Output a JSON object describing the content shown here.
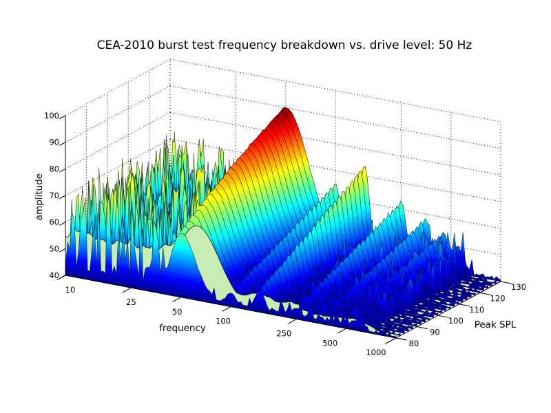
{
  "title": "CEA-2010 burst test frequency breakdown vs. drive level: 50 Hz",
  "chart_data": {
    "type": "waterfall",
    "title": "CEA-2010 burst test frequency breakdown vs. drive level: 50 Hz",
    "xlabel": "frequency",
    "ylabel": "Peak SPL",
    "zlabel": "amplitude",
    "x_scale": "log",
    "x_range": [
      10,
      1000
    ],
    "x_ticks": [
      10,
      25,
      50,
      100,
      250,
      500,
      1000
    ],
    "y_range": [
      80,
      130
    ],
    "y_ticks": [
      80,
      90,
      100,
      110,
      120,
      130
    ],
    "z_range": [
      40,
      100
    ],
    "z_ticks": [
      40,
      50,
      60,
      70,
      80,
      90,
      100
    ],
    "grid": "dotted",
    "legend": "none",
    "colormap": "jet",
    "c_range": [
      40,
      90
    ],
    "colormap_stops": [
      {
        "t": 0.0,
        "c": "#00008f"
      },
      {
        "t": 0.125,
        "c": "#0000ff"
      },
      {
        "t": 0.375,
        "c": "#00ffff"
      },
      {
        "t": 0.625,
        "c": "#ffff00"
      },
      {
        "t": 0.875,
        "c": "#ff0000"
      },
      {
        "t": 1.0,
        "c": "#800000"
      }
    ],
    "fundamental_hz": 50,
    "peak_frequencies": [
      50,
      100,
      150,
      250,
      350,
      450,
      550
    ],
    "slices": [
      {
        "spl": 80,
        "peaks": [
          64.0,
          45.0,
          48.0,
          44.0,
          42.0,
          41.0,
          40.0
        ]
      },
      {
        "spl": 82,
        "peaks": [
          65.3,
          45.8,
          49.0,
          44.8,
          42.6,
          41.5,
          40.4
        ]
      },
      {
        "spl": 84,
        "peaks": [
          66.5,
          46.6,
          50.1,
          45.5,
          43.3,
          42.0,
          40.8
        ]
      },
      {
        "spl": 86,
        "peaks": [
          67.8,
          47.4,
          51.1,
          46.3,
          43.9,
          42.6,
          41.2
        ]
      },
      {
        "spl": 88,
        "peaks": [
          69.0,
          48.2,
          52.2,
          47.0,
          44.6,
          43.1,
          41.6
        ]
      },
      {
        "spl": 90,
        "peaks": [
          70.2,
          49.0,
          53.2,
          47.8,
          45.2,
          43.6,
          42.0
        ]
      },
      {
        "spl": 92,
        "peaks": [
          71.3,
          49.8,
          54.2,
          48.6,
          45.8,
          44.1,
          42.4
        ]
      },
      {
        "spl": 94,
        "peaks": [
          72.5,
          50.6,
          55.3,
          49.3,
          46.5,
          44.6,
          42.8
        ]
      },
      {
        "spl": 96,
        "peaks": [
          73.6,
          51.4,
          56.3,
          50.1,
          47.1,
          45.2,
          43.2
        ]
      },
      {
        "spl": 98,
        "peaks": [
          74.7,
          52.2,
          57.4,
          50.8,
          47.8,
          45.7,
          43.6
        ]
      },
      {
        "spl": 100,
        "peaks": [
          75.8,
          53.0,
          58.4,
          51.6,
          48.4,
          46.2,
          44.0
        ]
      },
      {
        "spl": 102,
        "peaks": [
          76.9,
          53.8,
          59.4,
          52.4,
          49.0,
          46.7,
          44.4
        ]
      },
      {
        "spl": 104,
        "peaks": [
          78.0,
          54.6,
          60.5,
          53.1,
          49.7,
          47.2,
          44.8
        ]
      },
      {
        "spl": 106,
        "peaks": [
          79.0,
          55.4,
          61.5,
          53.9,
          50.3,
          47.8,
          45.2
        ]
      },
      {
        "spl": 108,
        "peaks": [
          80.0,
          56.2,
          62.6,
          54.6,
          51.0,
          48.3,
          45.6
        ]
      },
      {
        "spl": 110,
        "peaks": [
          81.0,
          57.0,
          63.6,
          55.4,
          51.6,
          48.8,
          46.0
        ]
      },
      {
        "spl": 112,
        "peaks": [
          82.0,
          57.8,
          64.6,
          56.2,
          52.2,
          49.3,
          46.4
        ]
      },
      {
        "spl": 114,
        "peaks": [
          83.0,
          58.6,
          65.7,
          56.9,
          52.9,
          49.8,
          46.8
        ]
      },
      {
        "spl": 116,
        "peaks": [
          83.9,
          59.4,
          66.7,
          57.7,
          53.5,
          50.4,
          47.2
        ]
      },
      {
        "spl": 118,
        "peaks": [
          84.9,
          60.2,
          67.8,
          58.4,
          54.2,
          50.9,
          47.6
        ]
      },
      {
        "spl": 120,
        "peaks": [
          85.8,
          61.0,
          68.8,
          59.2,
          54.8,
          51.4,
          48.0
        ]
      },
      {
        "spl": 122,
        "peaks": [
          86.6,
          61.8,
          69.8,
          60.0,
          55.4,
          51.9,
          48.4
        ]
      },
      {
        "spl": 124,
        "peaks": [
          87.5,
          62.6,
          70.9,
          60.7,
          56.1,
          52.4,
          48.8
        ]
      },
      {
        "spl": 126,
        "peaks": [
          88.4,
          63.4,
          71.9,
          61.5,
          56.7,
          53.0,
          49.2
        ]
      },
      {
        "spl": 128,
        "peaks": [
          89.2,
          64.2,
          73.0,
          62.2,
          57.4,
          53.5,
          49.6
        ]
      },
      {
        "spl": 130,
        "peaks": [
          90.0,
          65.0,
          74.0,
          63.0,
          58.0,
          54.0,
          50.0
        ]
      }
    ],
    "noise": {
      "floor_amp": 40,
      "low_band_hz": [
        10,
        52
      ],
      "low_max_amp": 74,
      "mid_band_hz": [
        55,
        650
      ],
      "mid_max_amp": 57,
      "seed": 43758.5453,
      "n_freq_points": 150
    },
    "skirt": {
      "color": "#c6eeb4",
      "edge_color": "#0a1e0a",
      "hump_hz": 63,
      "hump_amp": 68
    },
    "stroke_color": "#04091c",
    "grid_color": "#000000",
    "axis_color": "#000000"
  }
}
